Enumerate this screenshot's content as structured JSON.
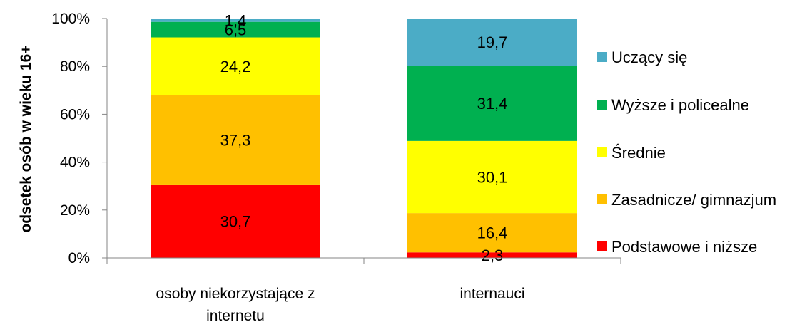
{
  "chart_data": {
    "type": "bar",
    "stacked": true,
    "percent_scale": true,
    "categories": [
      "osoby niekorzystające z internetu",
      "internauci"
    ],
    "series": [
      {
        "name": "Podstawowe i niższe",
        "color": "#ff0000",
        "values": [
          30.7,
          2.3
        ],
        "labels": [
          "30,7",
          "2,3"
        ]
      },
      {
        "name": "Zasadnicze/ gimnazjum",
        "color": "#ffc000",
        "values": [
          37.3,
          16.4
        ],
        "labels": [
          "37,3",
          "16,4"
        ]
      },
      {
        "name": "Średnie",
        "color": "#ffff00",
        "values": [
          24.2,
          30.1
        ],
        "labels": [
          "24,2",
          "30,1"
        ]
      },
      {
        "name": "Wyższe i policealne",
        "color": "#00b050",
        "values": [
          6.5,
          31.4
        ],
        "labels": [
          "6,5",
          "31,4"
        ]
      },
      {
        "name": "Uczący się",
        "color": "#4bacc6",
        "values": [
          1.4,
          19.7
        ],
        "labels": [
          "1,4",
          "19,7"
        ]
      }
    ],
    "ylabel": "odsetek osób w wieku 16+",
    "xlabel": "",
    "ylim": [
      0,
      100
    ],
    "yticks": [
      "0%",
      "20%",
      "40%",
      "60%",
      "80%",
      "100%"
    ],
    "legend_position": "right",
    "grid": false
  }
}
